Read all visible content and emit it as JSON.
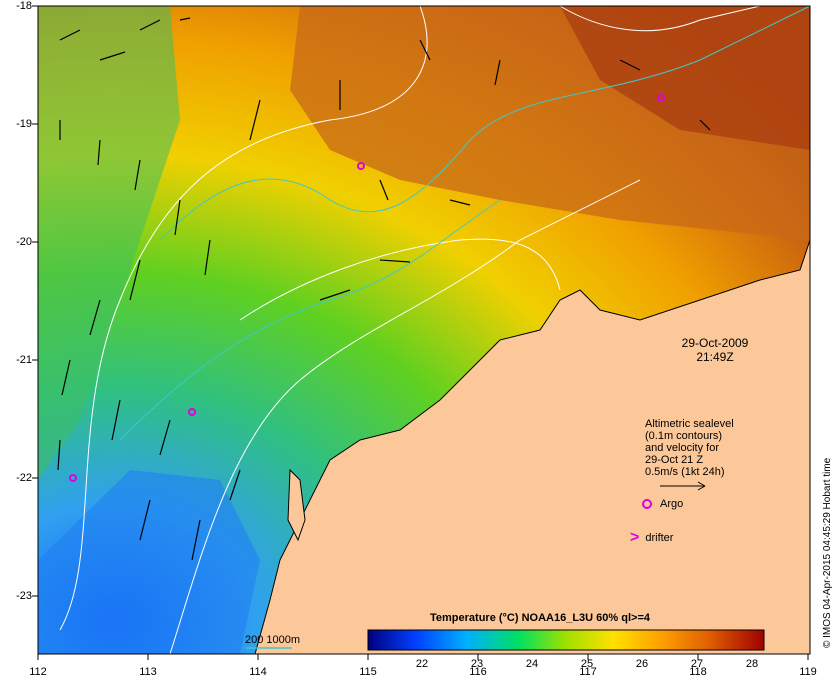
{
  "map": {
    "lon_range": [
      112,
      119
    ],
    "lat_range": [
      -23.5,
      -18
    ],
    "x_ticks": [
      "112",
      "113",
      "114",
      "115",
      "116",
      "117",
      "118",
      "119"
    ],
    "y_ticks": [
      "-18",
      "-19",
      "-20",
      "-21",
      "-22",
      "-23"
    ],
    "land_color": "#fcc89a",
    "contour_color": "#ffffff",
    "isobath_color": "#40c8c8"
  },
  "timestamp": {
    "date": "29-Oct-2009",
    "time": "21:49Z"
  },
  "legend": {
    "line1": "Altimetric sealevel",
    "line2": "(0.1m contours)",
    "line3": "and velocity for",
    "line4": "29-Oct 21 Z",
    "line5": "0.5m/s (1kt 24h)",
    "argo_label": "Argo",
    "drifter_label": "drifter",
    "marker_color": "#e000e0"
  },
  "contour_key": "200  1000m",
  "colorbar": {
    "title": "Temperature (°C) NOAA16_L3U 60% ql>=4",
    "ticks": [
      "22",
      "23",
      "24",
      "25",
      "26",
      "27",
      "28"
    ],
    "range": [
      21,
      28.2
    ]
  },
  "credit": "© IMOS 04-Apr-2015 04:45:29 Hobart time",
  "argo_positions": [
    [
      114.9,
      -19.35
    ],
    [
      113.4,
      -21.45
    ],
    [
      112.3,
      -22.0
    ],
    [
      117.7,
      -18.8
    ]
  ]
}
